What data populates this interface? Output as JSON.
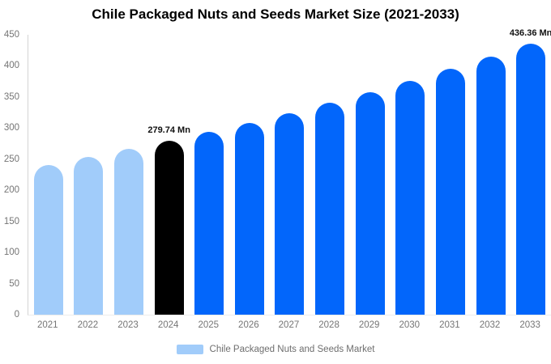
{
  "title": "Chile Packaged Nuts and Seeds Market Size (2021-2033)",
  "chart_data": {
    "type": "bar",
    "title": "Chile Packaged Nuts and Seeds Market Size (2021-2033)",
    "series_name": "Chile Packaged Nuts and Seeds Market",
    "categories": [
      "2021",
      "2022",
      "2023",
      "2024",
      "2025",
      "2026",
      "2027",
      "2028",
      "2029",
      "2030",
      "2031",
      "2032",
      "2033"
    ],
    "values": [
      241.2,
      253.4,
      266.3,
      279.74,
      293.9,
      308.8,
      324.4,
      340.9,
      358.1,
      376.2,
      395.3,
      415.3,
      436.36
    ],
    "unit": "Mn",
    "data_labels": [
      "",
      "",
      "",
      "279.74 Mn",
      "",
      "",
      "",
      "",
      "",
      "",
      "",
      "",
      "436.36 Mn"
    ],
    "bar_colors": [
      "#A1CCFA",
      "#A1CCFA",
      "#A1CCFA",
      "#000000",
      "#0266FB",
      "#0266FB",
      "#0266FB",
      "#0266FB",
      "#0266FB",
      "#0266FB",
      "#0266FB",
      "#0266FB",
      "#0266FB"
    ],
    "xlabel": "",
    "ylabel": "",
    "ylim": [
      0,
      450
    ],
    "yticks": [
      0,
      50,
      100,
      150,
      200,
      250,
      300,
      350,
      400,
      450
    ],
    "grid": false,
    "legend_position": "bottom"
  },
  "legend": {
    "label": "Chile Packaged Nuts and Seeds Market",
    "swatch_color": "#A1CCFA"
  },
  "colors": {
    "historical_bar": "#A1CCFA",
    "highlight_bar": "#000000",
    "forecast_bar": "#0266FB",
    "axis_line": "#D4D4D4",
    "tick_text": "#757575",
    "value_label_text": "#111111",
    "legend_text": "#6E6E6E",
    "background": "#FFFFFF"
  }
}
